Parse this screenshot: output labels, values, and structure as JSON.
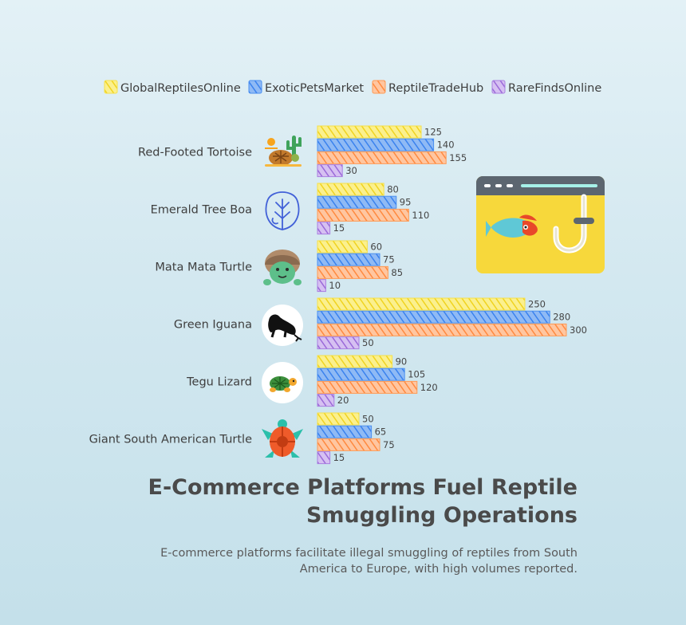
{
  "chart_data": {
    "type": "bar",
    "orientation": "horizontal",
    "title": "E-Commerce Platforms Fuel Reptile Smuggling Operations",
    "subtitle": "E-commerce platforms facilitate illegal smuggling of reptiles from South America to Europe, with high volumes reported.",
    "categories": [
      "Red-Footed Tortoise",
      "Emerald Tree Boa",
      "Mata Mata Turtle",
      "Green Iguana",
      "Tegu Lizard",
      "Giant South American Turtle"
    ],
    "category_icons": [
      "tortoise-desert-icon",
      "leaf-outline-icon",
      "mata-mata-turtle-icon",
      "iguana-silhouette-icon",
      "turtle-icon",
      "sea-turtle-icon"
    ],
    "series": [
      {
        "name": "GlobalReptilesOnline",
        "color": "#f5e04a",
        "values": [
          125,
          80,
          60,
          250,
          90,
          50
        ]
      },
      {
        "name": "ExoticPetsMarket",
        "color": "#4a8ff0",
        "values": [
          140,
          95,
          75,
          280,
          105,
          65
        ]
      },
      {
        "name": "ReptileTradeHub",
        "color": "#ff9a55",
        "values": [
          155,
          110,
          85,
          300,
          120,
          75
        ]
      },
      {
        "name": "RareFindsOnline",
        "color": "#a97ee0",
        "values": [
          30,
          15,
          10,
          50,
          20,
          15
        ]
      }
    ],
    "xlim": [
      0,
      300
    ],
    "grid": false,
    "legend": "top",
    "decoration": "fish-hook-browser-icon"
  }
}
